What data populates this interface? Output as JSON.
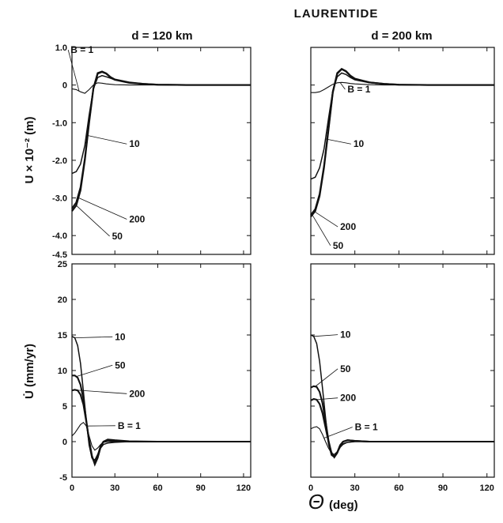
{
  "figure": {
    "title": "LAURENTIDE",
    "col_titles": [
      "d = 120 km",
      "d = 200 km"
    ],
    "row_ylabels": [
      "U × 10⁻² (m)",
      "U̇ (mm/yr)"
    ],
    "xlabel_symbol": "Θ",
    "xlabel_unit": "(deg)"
  },
  "chart_data": [
    {
      "type": "line",
      "panel": "top-left",
      "title": "d = 120 km",
      "xlabel": "",
      "ylabel": "U × 10⁻² (m)",
      "xlim": [
        0,
        125
      ],
      "ylim": [
        -4.5,
        1.0
      ],
      "xticks": [
        0,
        30,
        60,
        90,
        120
      ],
      "yticks": [
        1.0,
        0,
        -1.0,
        -2.0,
        -3.0,
        -4.0,
        -4.5
      ],
      "series": [
        {
          "name": "B = 1",
          "x": [
            0,
            3,
            6,
            9,
            12,
            15,
            18,
            21,
            24,
            27,
            30,
            40,
            50,
            60,
            80,
            100,
            125
          ],
          "y": [
            -0.1,
            -0.12,
            -0.18,
            -0.22,
            -0.12,
            0.0,
            0.06,
            0.05,
            0.03,
            0.02,
            0.01,
            0.0,
            0.0,
            0.0,
            0.0,
            0.0,
            0.0
          ]
        },
        {
          "name": "10",
          "x": [
            0,
            3,
            6,
            9,
            12,
            15,
            18,
            21,
            24,
            27,
            30,
            40,
            50,
            60,
            80,
            100,
            125
          ],
          "y": [
            -2.35,
            -2.3,
            -2.1,
            -1.6,
            -0.8,
            -0.1,
            0.2,
            0.25,
            0.22,
            0.18,
            0.14,
            0.06,
            0.03,
            0.01,
            0.0,
            0.0,
            0.0
          ]
        },
        {
          "name": "50",
          "x": [
            0,
            3,
            6,
            9,
            12,
            15,
            18,
            21,
            24,
            27,
            30,
            40,
            50,
            60,
            80,
            100,
            125
          ],
          "y": [
            -3.35,
            -3.2,
            -2.8,
            -2.0,
            -1.0,
            -0.1,
            0.3,
            0.35,
            0.3,
            0.2,
            0.14,
            0.06,
            0.03,
            0.01,
            0.0,
            0.0,
            0.0
          ]
        },
        {
          "name": "200",
          "x": [
            0,
            3,
            6,
            9,
            12,
            15,
            18,
            21,
            24,
            27,
            30,
            40,
            50,
            60,
            80,
            100,
            125
          ],
          "y": [
            -3.28,
            -3.12,
            -2.72,
            -1.95,
            -0.95,
            -0.08,
            0.32,
            0.36,
            0.31,
            0.21,
            0.15,
            0.07,
            0.03,
            0.01,
            0.0,
            0.0,
            0.0
          ]
        }
      ]
    },
    {
      "type": "line",
      "panel": "top-right",
      "title": "d = 200 km",
      "xlabel": "",
      "ylabel": "",
      "xlim": [
        0,
        125
      ],
      "ylim": [
        -4.5,
        1.0
      ],
      "xticks": [
        0,
        30,
        60,
        90,
        120
      ],
      "yticks": [
        1.0,
        0,
        -1.0,
        -2.0,
        -3.0,
        -4.0,
        -4.5
      ],
      "series": [
        {
          "name": "B = 1",
          "x": [
            0,
            3,
            6,
            9,
            12,
            15,
            18,
            21,
            24,
            27,
            30,
            40,
            50,
            60,
            80,
            100,
            125
          ],
          "y": [
            -0.2,
            -0.2,
            -0.18,
            -0.12,
            -0.05,
            0.02,
            0.06,
            0.07,
            0.06,
            0.04,
            0.03,
            0.01,
            0.0,
            0.0,
            0.0,
            0.0,
            0.0
          ]
        },
        {
          "name": "10",
          "x": [
            0,
            3,
            6,
            9,
            12,
            15,
            18,
            21,
            24,
            27,
            30,
            40,
            50,
            60,
            80,
            100,
            125
          ],
          "y": [
            -2.5,
            -2.45,
            -2.2,
            -1.7,
            -0.9,
            -0.15,
            0.22,
            0.32,
            0.28,
            0.2,
            0.14,
            0.06,
            0.03,
            0.01,
            0.0,
            0.0,
            0.0
          ]
        },
        {
          "name": "50",
          "x": [
            0,
            3,
            6,
            9,
            12,
            15,
            18,
            21,
            24,
            27,
            30,
            40,
            50,
            60,
            80,
            100,
            125
          ],
          "y": [
            -3.5,
            -3.35,
            -2.95,
            -2.2,
            -1.2,
            -0.2,
            0.3,
            0.42,
            0.36,
            0.24,
            0.16,
            0.07,
            0.03,
            0.01,
            0.0,
            0.0,
            0.0
          ]
        },
        {
          "name": "200",
          "x": [
            0,
            3,
            6,
            9,
            12,
            15,
            18,
            21,
            24,
            27,
            30,
            40,
            50,
            60,
            80,
            100,
            125
          ],
          "y": [
            -3.45,
            -3.3,
            -2.9,
            -2.15,
            -1.15,
            -0.18,
            0.32,
            0.43,
            0.37,
            0.25,
            0.17,
            0.07,
            0.03,
            0.01,
            0.0,
            0.0,
            0.0
          ]
        }
      ]
    },
    {
      "type": "line",
      "panel": "bottom-left",
      "title": "",
      "xlabel": "",
      "ylabel": "U̇ (mm/yr)",
      "xlim": [
        0,
        125
      ],
      "ylim": [
        -5,
        25
      ],
      "xticks": [
        0,
        30,
        60,
        90,
        120
      ],
      "yticks": [
        25,
        20,
        15,
        10,
        5,
        0,
        -5
      ],
      "series": [
        {
          "name": "10",
          "x": [
            0,
            2,
            4,
            6,
            8,
            10,
            12,
            14,
            16,
            18,
            20,
            22,
            25,
            30,
            40,
            60,
            80,
            100,
            125
          ],
          "y": [
            14.8,
            14.6,
            13.5,
            11.0,
            7.0,
            3.0,
            -0.5,
            -2.3,
            -2.6,
            -1.8,
            -0.9,
            -0.4,
            -0.2,
            -0.1,
            0.0,
            0.0,
            0.0,
            0.0,
            0.0
          ]
        },
        {
          "name": "50",
          "x": [
            0,
            2,
            4,
            6,
            8,
            10,
            12,
            14,
            16,
            18,
            20,
            22,
            25,
            30,
            40,
            60,
            80,
            100,
            125
          ],
          "y": [
            9.3,
            9.3,
            9.0,
            8.0,
            6.0,
            3.0,
            0.0,
            -2.2,
            -3.0,
            -2.0,
            -0.6,
            0.0,
            0.2,
            0.1,
            0.0,
            0.0,
            0.0,
            0.0,
            0.0
          ]
        },
        {
          "name": "200",
          "x": [
            0,
            2,
            4,
            6,
            8,
            10,
            12,
            14,
            16,
            18,
            20,
            22,
            25,
            30,
            40,
            60,
            80,
            100,
            125
          ],
          "y": [
            7.2,
            7.3,
            7.2,
            6.6,
            5.2,
            2.8,
            0.2,
            -2.0,
            -3.2,
            -2.3,
            -0.8,
            0.0,
            0.3,
            0.2,
            0.05,
            0.0,
            0.0,
            0.0,
            0.0
          ]
        },
        {
          "name": "B = 1",
          "x": [
            0,
            2,
            4,
            6,
            8,
            10,
            12,
            14,
            16,
            18,
            20,
            22,
            25,
            30,
            40,
            60,
            80,
            100,
            125
          ],
          "y": [
            0.8,
            1.2,
            1.8,
            2.4,
            2.7,
            2.2,
            0.8,
            -0.6,
            -1.2,
            -0.9,
            -0.4,
            -0.1,
            0.0,
            0.0,
            0.0,
            0.0,
            0.0,
            0.0,
            0.0
          ]
        }
      ]
    },
    {
      "type": "line",
      "panel": "bottom-right",
      "title": "",
      "xlabel": "",
      "ylabel": "",
      "xlim": [
        0,
        125
      ],
      "ylim": [
        -5,
        25
      ],
      "xticks": [
        0,
        30,
        60,
        90,
        120
      ],
      "yticks": [
        25,
        20,
        15,
        10,
        5,
        0,
        -5
      ],
      "series": [
        {
          "name": "10",
          "x": [
            0,
            2,
            4,
            6,
            8,
            10,
            12,
            14,
            16,
            18,
            20,
            22,
            25,
            30,
            40,
            60,
            80,
            100,
            125
          ],
          "y": [
            15.0,
            14.8,
            13.8,
            11.3,
            7.5,
            3.4,
            -0.3,
            -1.9,
            -2.2,
            -1.6,
            -0.8,
            -0.3,
            -0.1,
            0.0,
            0.0,
            0.0,
            0.0,
            0.0,
            0.0
          ]
        },
        {
          "name": "50",
          "x": [
            0,
            2,
            4,
            6,
            8,
            10,
            12,
            14,
            16,
            18,
            20,
            22,
            25,
            30,
            40,
            60,
            80,
            100,
            125
          ],
          "y": [
            7.6,
            7.8,
            7.7,
            7.0,
            5.4,
            2.9,
            0.2,
            -1.6,
            -2.1,
            -1.5,
            -0.5,
            0.0,
            0.2,
            0.1,
            0.0,
            0.0,
            0.0,
            0.0,
            0.0
          ]
        },
        {
          "name": "200",
          "x": [
            0,
            2,
            4,
            6,
            8,
            10,
            12,
            14,
            16,
            18,
            20,
            22,
            25,
            30,
            40,
            60,
            80,
            100,
            125
          ],
          "y": [
            5.8,
            6.0,
            5.9,
            5.3,
            4.0,
            2.0,
            0.0,
            -1.5,
            -2.2,
            -1.6,
            -0.5,
            0.0,
            0.2,
            0.1,
            0.0,
            0.0,
            0.0,
            0.0,
            0.0
          ]
        },
        {
          "name": "B = 1",
          "x": [
            0,
            2,
            4,
            6,
            8,
            10,
            12,
            14,
            16,
            18,
            20,
            22,
            25,
            30,
            40,
            60,
            80,
            100,
            125
          ],
          "y": [
            1.8,
            2.0,
            2.1,
            1.8,
            1.0,
            0.0,
            -0.9,
            -1.6,
            -1.8,
            -1.4,
            -0.8,
            -0.4,
            -0.1,
            0.0,
            0.0,
            0.0,
            0.0,
            0.0,
            0.0
          ]
        }
      ]
    }
  ]
}
